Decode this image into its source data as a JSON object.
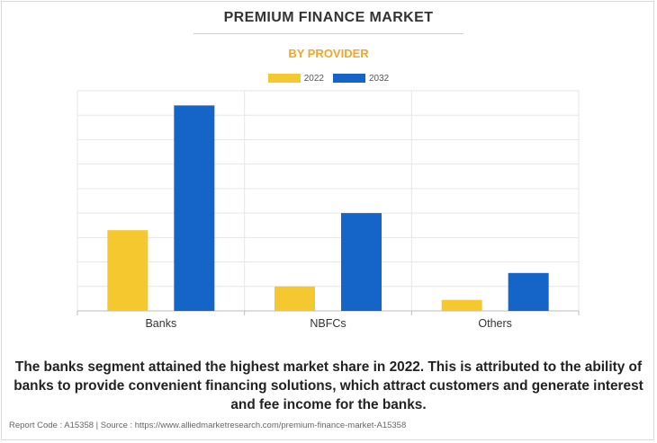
{
  "header": {
    "title": "PREMIUM FINANCE MARKET",
    "subtitle": "BY PROVIDER"
  },
  "colors": {
    "series_2022": "#f5c830",
    "series_2032": "#1565c8",
    "subtitle": "#f5a623"
  },
  "chart_data": {
    "type": "bar",
    "title": "PREMIUM FINANCE MARKET",
    "subtitle": "BY PROVIDER",
    "categories": [
      "Banks",
      "NBFCs",
      "Others"
    ],
    "series": [
      {
        "name": "2022",
        "values": [
          3.3,
          1.0,
          0.45
        ]
      },
      {
        "name": "2032",
        "values": [
          8.4,
          4.0,
          1.55
        ]
      }
    ],
    "ylim": [
      0,
      9
    ],
    "grid": true,
    "legend": "top-center",
    "xlabel": "",
    "ylabel": ""
  },
  "description": "The banks segment attained the highest market share in 2022. This is attributed to the ability of banks to provide convenient financing solutions, which attract customers and generate interest and fee income for the banks.",
  "footer": "Report Code : A15358  |  Source : https://www.alliedmarketresearch.com/premium-finance-market-A15358"
}
